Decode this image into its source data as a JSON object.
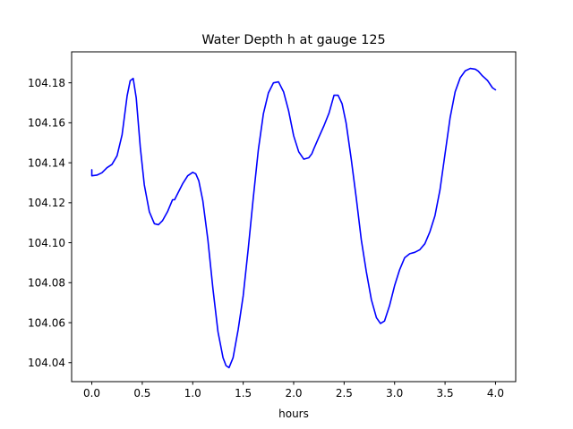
{
  "chart_data": {
    "type": "line",
    "title": "Water Depth h at gauge 125",
    "xlabel": "hours",
    "ylabel": "",
    "xlim": [
      -0.2,
      4.2
    ],
    "ylim": [
      104.0305,
      104.1955
    ],
    "xticks": [
      0.0,
      0.5,
      1.0,
      1.5,
      2.0,
      2.5,
      3.0,
      3.5,
      4.0
    ],
    "xtick_labels": [
      "0.0",
      "0.5",
      "1.0",
      "1.5",
      "2.0",
      "2.5",
      "3.0",
      "3.5",
      "4.0"
    ],
    "yticks": [
      104.04,
      104.06,
      104.08,
      104.1,
      104.12,
      104.14,
      104.16,
      104.18
    ],
    "ytick_labels": [
      "104.04",
      "104.06",
      "104.08",
      "104.10",
      "104.12",
      "104.14",
      "104.16",
      "104.18"
    ],
    "grid": false,
    "legend": "none",
    "series": [
      {
        "color": "#0000ff",
        "x": [
          0.0,
          0.0,
          0.05,
          0.1,
          0.15,
          0.2,
          0.25,
          0.3,
          0.35,
          0.38,
          0.41,
          0.44,
          0.48,
          0.52,
          0.57,
          0.62,
          0.66,
          0.7,
          0.75,
          0.8,
          0.82,
          0.85,
          0.9,
          0.95,
          1.0,
          1.03,
          1.06,
          1.1,
          1.15,
          1.2,
          1.25,
          1.3,
          1.33,
          1.36,
          1.4,
          1.45,
          1.5,
          1.55,
          1.6,
          1.65,
          1.7,
          1.75,
          1.8,
          1.85,
          1.9,
          1.95,
          2.0,
          2.05,
          2.1,
          2.15,
          2.18,
          2.2,
          2.25,
          2.3,
          2.35,
          2.4,
          2.44,
          2.48,
          2.52,
          2.57,
          2.62,
          2.67,
          2.72,
          2.77,
          2.82,
          2.86,
          2.9,
          2.95,
          3.0,
          3.05,
          3.1,
          3.15,
          3.2,
          3.25,
          3.3,
          3.35,
          3.4,
          3.45,
          3.5,
          3.55,
          3.6,
          3.65,
          3.7,
          3.75,
          3.8,
          3.83,
          3.87,
          3.92,
          3.97,
          4.0
        ],
        "y": [
          104.1365,
          104.1335,
          104.1338,
          104.135,
          104.1375,
          104.1392,
          104.1435,
          104.154,
          104.1735,
          104.181,
          104.1822,
          104.1725,
          104.148,
          104.129,
          104.1155,
          104.1095,
          104.109,
          104.111,
          104.1155,
          104.1215,
          104.1215,
          104.1245,
          104.1295,
          104.1335,
          104.1352,
          104.1345,
          104.131,
          104.121,
          104.1015,
          104.077,
          104.0555,
          104.0425,
          104.0385,
          104.0375,
          104.0425,
          104.0565,
          104.0735,
          104.097,
          104.1225,
          104.1465,
          104.1645,
          104.175,
          104.18,
          104.1805,
          104.1755,
          104.166,
          104.1535,
          104.1455,
          104.1418,
          104.1425,
          104.1445,
          104.147,
          104.1528,
          104.1585,
          104.1648,
          104.1738,
          104.1738,
          104.1695,
          104.1598,
          104.142,
          104.1225,
          104.1015,
          104.0855,
          104.0715,
          104.0625,
          104.0596,
          104.0608,
          104.0685,
          104.0785,
          104.0865,
          104.0925,
          104.0945,
          104.0952,
          104.0965,
          104.0995,
          104.1055,
          104.1135,
          104.1265,
          104.1445,
          104.1625,
          104.1755,
          104.1825,
          104.186,
          104.1872,
          104.1868,
          104.1858,
          104.1835,
          104.1812,
          104.1775,
          104.1765
        ]
      }
    ]
  }
}
